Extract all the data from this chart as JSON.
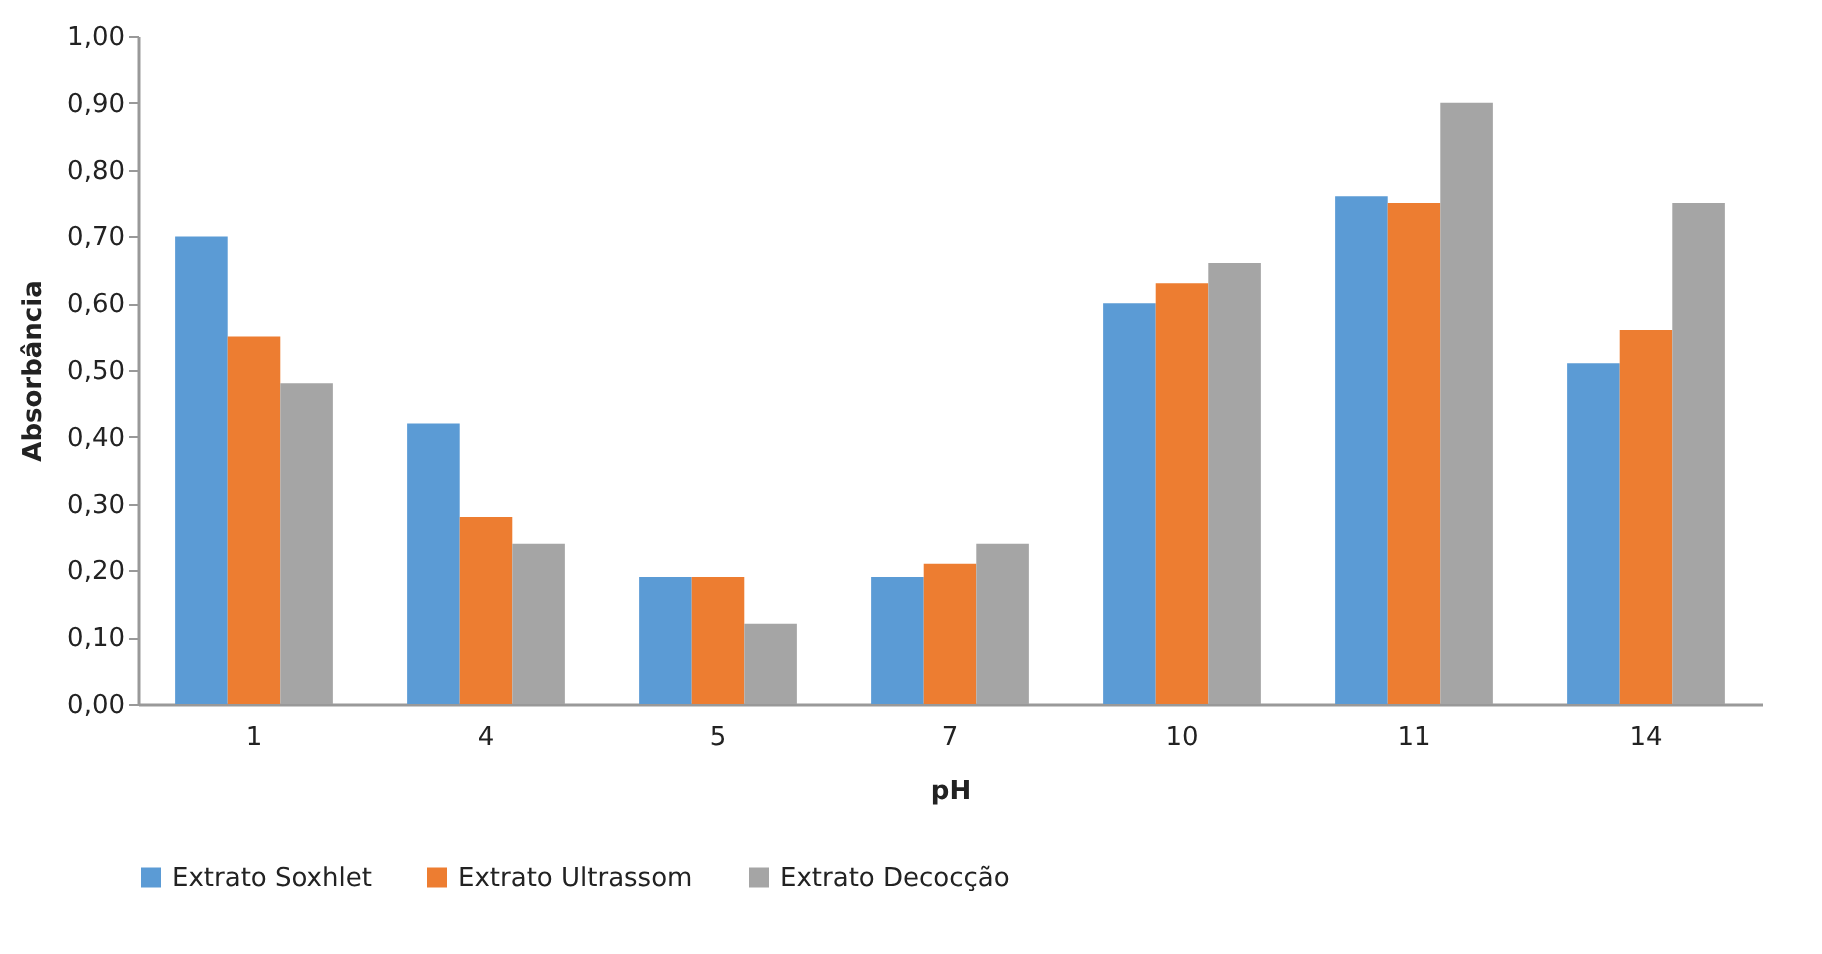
{
  "chart_data": {
    "type": "bar",
    "xlabel": "pH",
    "ylabel": "Absorbância",
    "categories": [
      "1",
      "4",
      "5",
      "7",
      "10",
      "11",
      "14"
    ],
    "series": [
      {
        "name": "Extrato Soxhlet",
        "color": "#5b9bd5",
        "values": [
          0.7,
          0.42,
          0.19,
          0.19,
          0.6,
          0.76,
          0.51
        ]
      },
      {
        "name": "Extrato Ultrassom",
        "color": "#ed7d31",
        "values": [
          0.55,
          0.28,
          0.19,
          0.21,
          0.63,
          0.75,
          0.56
        ]
      },
      {
        "name": "Extrato Decocção",
        "color": "#a5a5a5",
        "values": [
          0.48,
          0.24,
          0.12,
          0.24,
          0.66,
          0.9,
          0.75
        ]
      }
    ],
    "ylim": [
      0,
      1
    ],
    "yticks": [
      {
        "value": 0,
        "label": "0,00"
      },
      {
        "value": 0.1,
        "label": "0,10"
      },
      {
        "value": 0.2,
        "label": "0,20"
      },
      {
        "value": 0.3,
        "label": "0,30"
      },
      {
        "value": 0.4,
        "label": "0,40"
      },
      {
        "value": 0.5,
        "label": "0,50"
      },
      {
        "value": 0.6,
        "label": "0,60"
      },
      {
        "value": 0.7,
        "label": "0,70"
      },
      {
        "value": 0.8,
        "label": "0,80"
      },
      {
        "value": 0.9,
        "label": "0,90"
      },
      {
        "value": 1,
        "label": "1,00"
      }
    ],
    "grid": false,
    "legend": "bottom"
  }
}
